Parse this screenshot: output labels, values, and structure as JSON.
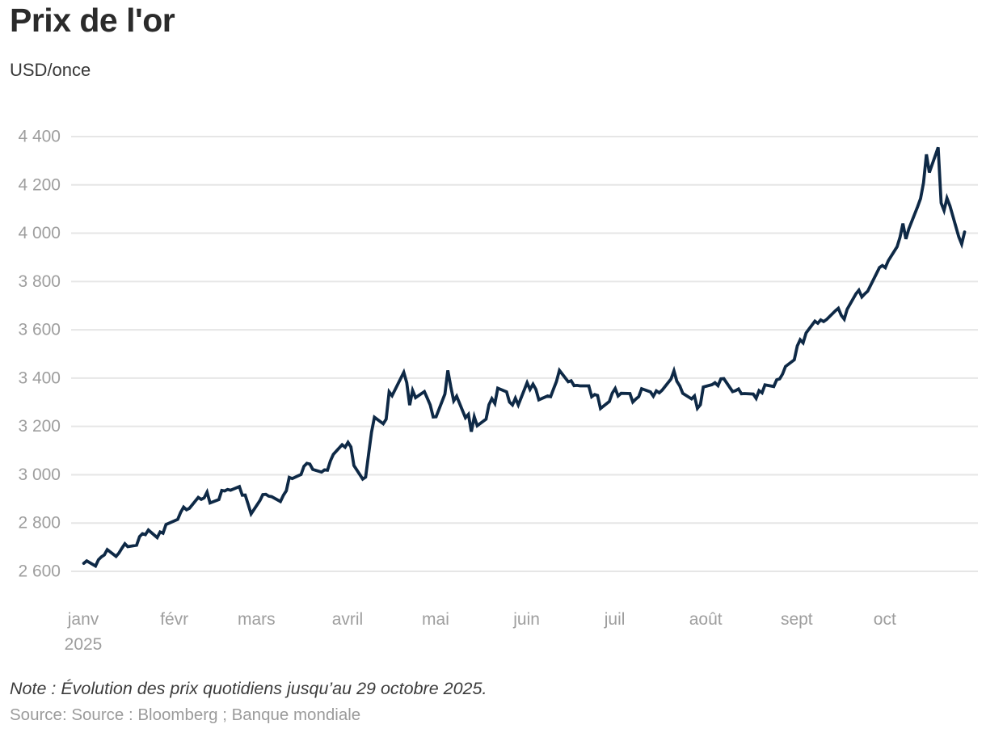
{
  "header": {
    "title": "Prix de l'or",
    "subtitle": "USD/once"
  },
  "footer": {
    "note": "Note : Évolution des prix quotidiens jusqu’au 29 octobre 2025.",
    "source": "Source: Source : Bloomberg ; Banque mondiale"
  },
  "colors": {
    "line": "#0e2946",
    "grid": "#e6e6e6",
    "axis_label": "#9e9e9e",
    "title_text": "#2b2b2b",
    "note_text": "#3c3c3c",
    "source_text": "#9b9b9b",
    "background": "#ffffff"
  },
  "chart_data": {
    "type": "line",
    "title": "Prix de l'or",
    "ylabel": "USD/once",
    "xlabel": "",
    "grid": "horizontal",
    "legend": "none",
    "ylim": [
      2600,
      4400
    ],
    "y_ticks": [
      2600,
      2800,
      3000,
      3200,
      3400,
      3600,
      3800,
      4000,
      4200,
      4400
    ],
    "x_ticks": [
      {
        "label": "janv",
        "sublabel": "2025",
        "date": "2025-01-01"
      },
      {
        "label": "févr",
        "sublabel": "",
        "date": "2025-02-01"
      },
      {
        "label": "mars",
        "sublabel": "",
        "date": "2025-03-01"
      },
      {
        "label": "avril",
        "sublabel": "",
        "date": "2025-04-01"
      },
      {
        "label": "mai",
        "sublabel": "",
        "date": "2025-05-01"
      },
      {
        "label": "juin",
        "sublabel": "",
        "date": "2025-06-01"
      },
      {
        "label": "juil",
        "sublabel": "",
        "date": "2025-07-01"
      },
      {
        "label": "août",
        "sublabel": "",
        "date": "2025-08-01"
      },
      {
        "label": "sept",
        "sublabel": "",
        "date": "2025-09-01"
      },
      {
        "label": "oct",
        "sublabel": "",
        "date": "2025-10-01"
      }
    ],
    "series_name": "Prix de l'or (USD/once)",
    "dates": [
      "2025-01-02",
      "2025-01-03",
      "2025-01-06",
      "2025-01-07",
      "2025-01-08",
      "2025-01-09",
      "2025-01-10",
      "2025-01-13",
      "2025-01-14",
      "2025-01-15",
      "2025-01-16",
      "2025-01-17",
      "2025-01-20",
      "2025-01-21",
      "2025-01-22",
      "2025-01-23",
      "2025-01-24",
      "2025-01-27",
      "2025-01-28",
      "2025-01-29",
      "2025-01-30",
      "2025-01-31",
      "2025-02-03",
      "2025-02-04",
      "2025-02-05",
      "2025-02-06",
      "2025-02-07",
      "2025-02-10",
      "2025-02-11",
      "2025-02-12",
      "2025-02-13",
      "2025-02-14",
      "2025-02-17",
      "2025-02-18",
      "2025-02-19",
      "2025-02-20",
      "2025-02-21",
      "2025-02-24",
      "2025-02-25",
      "2025-02-26",
      "2025-02-27",
      "2025-02-28",
      "2025-03-03",
      "2025-03-04",
      "2025-03-05",
      "2025-03-06",
      "2025-03-07",
      "2025-03-10",
      "2025-03-11",
      "2025-03-12",
      "2025-03-13",
      "2025-03-14",
      "2025-03-17",
      "2025-03-18",
      "2025-03-19",
      "2025-03-20",
      "2025-03-21",
      "2025-03-24",
      "2025-03-25",
      "2025-03-26",
      "2025-03-27",
      "2025-03-28",
      "2025-03-31",
      "2025-04-01",
      "2025-04-02",
      "2025-04-03",
      "2025-04-04",
      "2025-04-07",
      "2025-04-08",
      "2025-04-09",
      "2025-04-10",
      "2025-04-11",
      "2025-04-14",
      "2025-04-15",
      "2025-04-16",
      "2025-04-17",
      "2025-04-21",
      "2025-04-22",
      "2025-04-23",
      "2025-04-24",
      "2025-04-25",
      "2025-04-28",
      "2025-04-29",
      "2025-04-30",
      "2025-05-01",
      "2025-05-02",
      "2025-05-05",
      "2025-05-06",
      "2025-05-07",
      "2025-05-08",
      "2025-05-09",
      "2025-05-12",
      "2025-05-13",
      "2025-05-14",
      "2025-05-15",
      "2025-05-16",
      "2025-05-19",
      "2025-05-20",
      "2025-05-21",
      "2025-05-22",
      "2025-05-23",
      "2025-05-26",
      "2025-05-27",
      "2025-05-28",
      "2025-05-29",
      "2025-05-30",
      "2025-06-02",
      "2025-06-03",
      "2025-06-04",
      "2025-06-05",
      "2025-06-06",
      "2025-06-09",
      "2025-06-10",
      "2025-06-11",
      "2025-06-12",
      "2025-06-13",
      "2025-06-16",
      "2025-06-17",
      "2025-06-18",
      "2025-06-19",
      "2025-06-20",
      "2025-06-23",
      "2025-06-24",
      "2025-06-25",
      "2025-06-26",
      "2025-06-27",
      "2025-06-30",
      "2025-07-01",
      "2025-07-02",
      "2025-07-03",
      "2025-07-04",
      "2025-07-07",
      "2025-07-08",
      "2025-07-09",
      "2025-07-10",
      "2025-07-11",
      "2025-07-14",
      "2025-07-15",
      "2025-07-16",
      "2025-07-17",
      "2025-07-18",
      "2025-07-21",
      "2025-07-22",
      "2025-07-23",
      "2025-07-24",
      "2025-07-25",
      "2025-07-28",
      "2025-07-29",
      "2025-07-30",
      "2025-07-31",
      "2025-08-01",
      "2025-08-04",
      "2025-08-05",
      "2025-08-06",
      "2025-08-07",
      "2025-08-08",
      "2025-08-11",
      "2025-08-12",
      "2025-08-13",
      "2025-08-14",
      "2025-08-15",
      "2025-08-18",
      "2025-08-19",
      "2025-08-20",
      "2025-08-21",
      "2025-08-22",
      "2025-08-25",
      "2025-08-26",
      "2025-08-27",
      "2025-08-28",
      "2025-08-29",
      "2025-09-01",
      "2025-09-02",
      "2025-09-03",
      "2025-09-04",
      "2025-09-05",
      "2025-09-08",
      "2025-09-09",
      "2025-09-10",
      "2025-09-11",
      "2025-09-12",
      "2025-09-15",
      "2025-09-16",
      "2025-09-17",
      "2025-09-18",
      "2025-09-19",
      "2025-09-22",
      "2025-09-23",
      "2025-09-24",
      "2025-09-25",
      "2025-09-26",
      "2025-09-29",
      "2025-09-30",
      "2025-10-01",
      "2025-10-02",
      "2025-10-03",
      "2025-10-06",
      "2025-10-07",
      "2025-10-08",
      "2025-10-09",
      "2025-10-10",
      "2025-10-13",
      "2025-10-14",
      "2025-10-15",
      "2025-10-16",
      "2025-10-17",
      "2025-10-20",
      "2025-10-21",
      "2025-10-22",
      "2025-10-23",
      "2025-10-24",
      "2025-10-27",
      "2025-10-28",
      "2025-10-29"
    ],
    "values": [
      2633,
      2643,
      2622,
      2648,
      2660,
      2668,
      2690,
      2662,
      2676,
      2696,
      2714,
      2702,
      2708,
      2744,
      2756,
      2752,
      2771,
      2740,
      2763,
      2758,
      2794,
      2799,
      2815,
      2844,
      2866,
      2855,
      2861,
      2906,
      2898,
      2904,
      2928,
      2883,
      2897,
      2935,
      2933,
      2939,
      2936,
      2951,
      2915,
      2916,
      2877,
      2838,
      2893,
      2918,
      2919,
      2911,
      2909,
      2889,
      2915,
      2934,
      2989,
      2984,
      3001,
      3035,
      3047,
      3044,
      3022,
      3011,
      3020,
      3019,
      3057,
      3084,
      3124,
      3114,
      3134,
      3115,
      3038,
      2982,
      2990,
      3083,
      3176,
      3238,
      3211,
      3230,
      3343,
      3327,
      3424,
      3381,
      3288,
      3349,
      3319,
      3344,
      3317,
      3289,
      3239,
      3240,
      3334,
      3432,
      3364,
      3306,
      3325,
      3236,
      3250,
      3178,
      3240,
      3203,
      3230,
      3290,
      3315,
      3295,
      3358,
      3343,
      3301,
      3289,
      3317,
      3289,
      3381,
      3353,
      3375,
      3353,
      3310,
      3326,
      3323,
      3355,
      3386,
      3432,
      3385,
      3389,
      3369,
      3370,
      3368,
      3368,
      3323,
      3332,
      3328,
      3274,
      3303,
      3338,
      3357,
      3326,
      3337,
      3336,
      3301,
      3313,
      3323,
      3356,
      3343,
      3325,
      3347,
      3339,
      3350,
      3396,
      3430,
      3387,
      3368,
      3337,
      3314,
      3326,
      3275,
      3290,
      3363,
      3373,
      3381,
      3369,
      3397,
      3398,
      3344,
      3348,
      3355,
      3335,
      3336,
      3334,
      3316,
      3348,
      3339,
      3372,
      3365,
      3393,
      3397,
      3417,
      3448,
      3476,
      3533,
      3559,
      3546,
      3587,
      3636,
      3627,
      3641,
      3634,
      3643,
      3679,
      3689,
      3660,
      3644,
      3685,
      3749,
      3764,
      3736,
      3749,
      3760,
      3833,
      3858,
      3866,
      3857,
      3886,
      3944,
      3983,
      4040,
      3976,
      4018,
      4110,
      4143,
      4209,
      4326,
      4251,
      4355,
      4125,
      4094,
      4145,
      4113,
      3985,
      3955,
      4005
    ],
    "note": "Évolution des prix quotidiens jusqu’au 29 octobre 2025",
    "source": "Bloomberg ; Banque mondiale"
  }
}
